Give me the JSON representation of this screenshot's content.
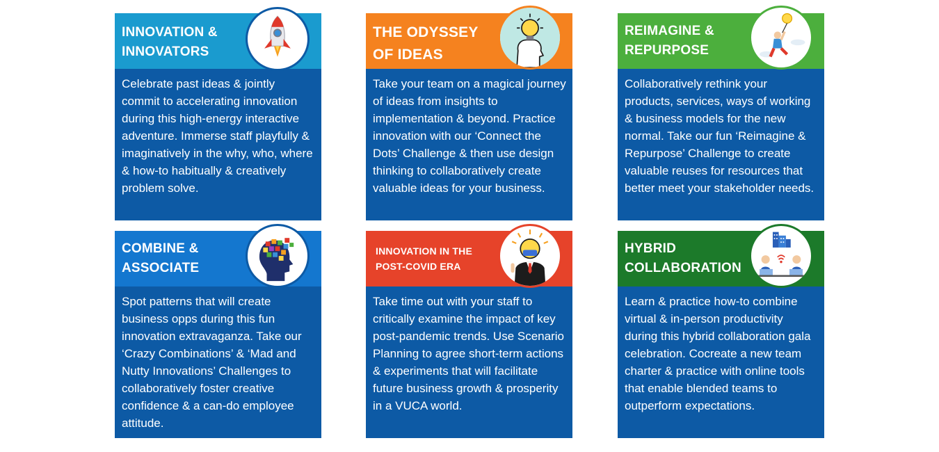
{
  "cards": [
    {
      "title": "INNOVATION &\nINNOVATORS",
      "text": "Celebrate past ideas & jointly commit to accelerating innovation during this high-energy interactive adventure. Immerse staff playfully & imaginatively in the why, who, where & how-to habitually & creatively problem solve.",
      "header_color": "#1a9bcf",
      "icon": "rocket-icon"
    },
    {
      "title": "THE ODYSSEY\nOF IDEAS",
      "text": "Take your team on a magical journey of ideas from insights to implementation & beyond. Practice innovation with our ‘Connect the Dots’ Challenge & then use design thinking to collaboratively create valuable ideas for your business.",
      "header_color": "#f5821f",
      "icon": "lightbulb-head-icon"
    },
    {
      "title": "REIMAGINE &\nREPURPOSE",
      "text": "Collaboratively rethink your products, services, ways of working & business models for the new normal. Take our fun ‘Reimagine & Repurpose’ Challenge to create valuable reuses for resources that better meet your stakeholder needs.",
      "header_color": "#4caf3d",
      "icon": "person-lightbulb-icon"
    },
    {
      "title": "COMBINE &\nASSOCIATE",
      "text": "Spot patterns that will create business opps during this fun innovation extravaganza. Take our ‘Crazy Combinations’ & ‘Mad and Nutty Innovations’ Challenges to collaboratively foster creative confidence & a can-do employee attitude.",
      "header_color": "#1477cf",
      "icon": "puzzle-head-icon"
    },
    {
      "title": "INNOVATION IN THE\nPOST-COVID ERA",
      "text": "Take time out with your staff to critically examine the impact of key post-pandemic trends. Use Scenario Planning to agree short-term actions & experiments that will facilitate future business growth & prosperity in a VUCA world.",
      "header_color": "#e6432a",
      "icon": "masked-businessman-icon"
    },
    {
      "title": "HYBRID\nCOLLABORATION",
      "text": "Learn & practice how-to combine virtual & in-person productivity during this hybrid collaboration gala celebration. Cocreate a new team charter & practice with online tools that enable blended teams to outperform expectations.",
      "header_color": "#1c7a2a",
      "icon": "remote-team-icon"
    }
  ]
}
